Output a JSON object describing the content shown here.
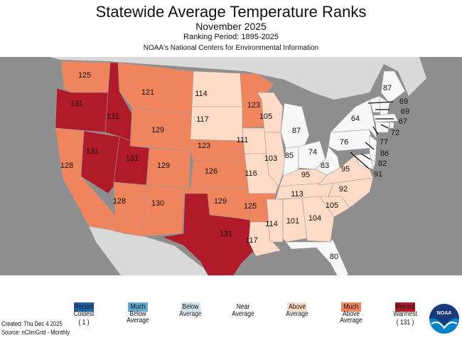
{
  "title": "Statewide Average Temperature Ranks",
  "subtitle": "November 2025",
  "period": "Ranking Period: 1895-2025",
  "source_org": "NOAA's National Centers for Environmental Information",
  "colors": {
    "record_coldest": "#1f65ad",
    "much_below": "#67a9d0",
    "below": "#d1e4f0",
    "near": "#f7f7f7",
    "above": "#fddbc7",
    "much_above": "#f0855d",
    "record_warmest": "#b11a28",
    "ocean": "#8e8e8e",
    "land_other": "#d9d9d9"
  },
  "legend": [
    {
      "label": "Record Coldest",
      "sub": "( 1 )",
      "cat": "record_coldest"
    },
    {
      "label": "Much Below Average",
      "sub": "",
      "cat": "much_below"
    },
    {
      "label": "Below Average",
      "sub": "",
      "cat": "below"
    },
    {
      "label": "Near Average",
      "sub": "",
      "cat": "near"
    },
    {
      "label": "Above Average",
      "sub": "",
      "cat": "above"
    },
    {
      "label": "Much Above Average",
      "sub": "",
      "cat": "much_above"
    },
    {
      "label": "Record Warmest",
      "sub": "( 131 )",
      "cat": "record_warmest"
    }
  ],
  "footer": {
    "created": "Created: Thu Dec  4 2025",
    "source": "Source: nClimGrid - Monthly"
  },
  "logo_text": "NOAA",
  "states": [
    {
      "id": "WA",
      "rank": "125",
      "cat": "much_above"
    },
    {
      "id": "OR",
      "rank": "131",
      "cat": "record_warmest"
    },
    {
      "id": "CA",
      "rank": "128",
      "cat": "much_above"
    },
    {
      "id": "NV",
      "rank": "131",
      "cat": "record_warmest"
    },
    {
      "id": "ID",
      "rank": "131",
      "cat": "record_warmest"
    },
    {
      "id": "MT",
      "rank": "121",
      "cat": "much_above"
    },
    {
      "id": "WY",
      "rank": "129",
      "cat": "much_above"
    },
    {
      "id": "UT",
      "rank": "131",
      "cat": "record_warmest"
    },
    {
      "id": "CO",
      "rank": "129",
      "cat": "much_above"
    },
    {
      "id": "AZ",
      "rank": "128",
      "cat": "much_above"
    },
    {
      "id": "NM",
      "rank": "130",
      "cat": "much_above"
    },
    {
      "id": "ND",
      "rank": "114",
      "cat": "above"
    },
    {
      "id": "SD",
      "rank": "117",
      "cat": "above"
    },
    {
      "id": "NE",
      "rank": "123",
      "cat": "much_above"
    },
    {
      "id": "KS",
      "rank": "126",
      "cat": "much_above"
    },
    {
      "id": "OK",
      "rank": "129",
      "cat": "much_above"
    },
    {
      "id": "TX",
      "rank": "131",
      "cat": "record_warmest"
    },
    {
      "id": "MN",
      "rank": "123",
      "cat": "much_above"
    },
    {
      "id": "IA",
      "rank": "111",
      "cat": "above"
    },
    {
      "id": "MO",
      "rank": "116",
      "cat": "above"
    },
    {
      "id": "AR",
      "rank": "125",
      "cat": "much_above"
    },
    {
      "id": "LA",
      "rank": "117",
      "cat": "above"
    },
    {
      "id": "WI",
      "rank": "105",
      "cat": "above"
    },
    {
      "id": "IL",
      "rank": "103",
      "cat": "above"
    },
    {
      "id": "MI",
      "rank": "87",
      "cat": "near"
    },
    {
      "id": "IN",
      "rank": "85",
      "cat": "near"
    },
    {
      "id": "OH",
      "rank": "74",
      "cat": "near"
    },
    {
      "id": "KY",
      "rank": "95",
      "cat": "above"
    },
    {
      "id": "TN",
      "rank": "113",
      "cat": "above"
    },
    {
      "id": "MS",
      "rank": "114",
      "cat": "above"
    },
    {
      "id": "AL",
      "rank": "101",
      "cat": "above"
    },
    {
      "id": "GA",
      "rank": "104",
      "cat": "above"
    },
    {
      "id": "FL",
      "rank": "80",
      "cat": "near"
    },
    {
      "id": "SC",
      "rank": "105",
      "cat": "above"
    },
    {
      "id": "NC",
      "rank": "92",
      "cat": "above"
    },
    {
      "id": "VA",
      "rank": "95",
      "cat": "above"
    },
    {
      "id": "WV",
      "rank": "83",
      "cat": "near"
    },
    {
      "id": "PA",
      "rank": "76",
      "cat": "near"
    },
    {
      "id": "NY",
      "rank": "64",
      "cat": "near"
    },
    {
      "id": "ME",
      "rank": "87",
      "cat": "near"
    },
    {
      "id": "VT",
      "rank": "69",
      "cat": "near"
    },
    {
      "id": "NH",
      "rank": "69",
      "cat": "near"
    },
    {
      "id": "MA",
      "rank": "67",
      "cat": "near"
    },
    {
      "id": "RI",
      "rank": "72",
      "cat": "near"
    },
    {
      "id": "CT",
      "rank": "77",
      "cat": "near"
    },
    {
      "id": "NJ",
      "rank": "86",
      "cat": "near"
    },
    {
      "id": "DE",
      "rank": "82",
      "cat": "near"
    },
    {
      "id": "MD",
      "rank": "91",
      "cat": "near"
    }
  ]
}
